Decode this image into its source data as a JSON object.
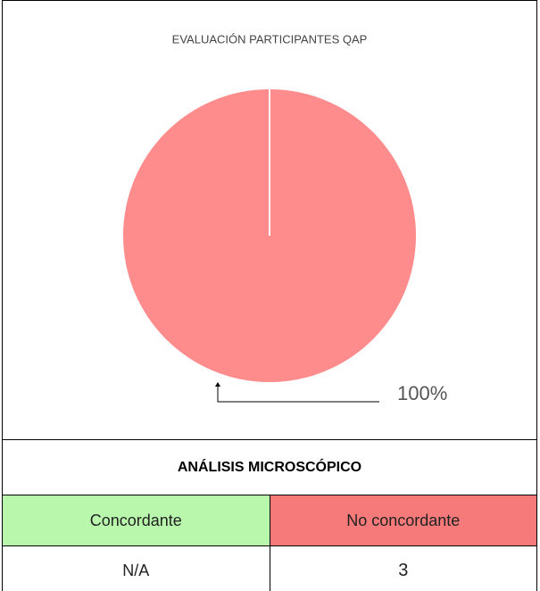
{
  "chart_data": {
    "type": "pie",
    "title": "EVALUACIÓN PARTICIPANTES QAP",
    "values": [
      100
    ],
    "value_labels": [
      "100%"
    ],
    "colors": [
      "#ff8c8c"
    ]
  },
  "table": {
    "title": "ANÁLISIS MICROSCÓPICO",
    "columns": [
      "Concordante",
      "No concordante"
    ],
    "rows": [
      [
        "N/A",
        "3"
      ]
    ]
  }
}
